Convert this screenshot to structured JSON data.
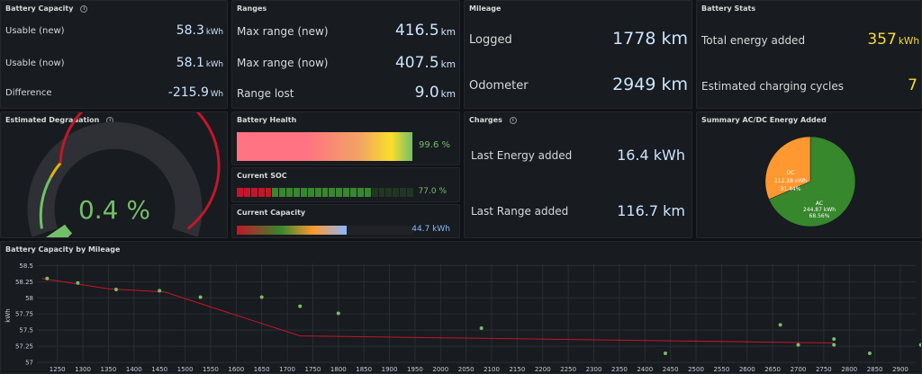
{
  "battery_capacity": {
    "title": "Battery Capacity",
    "rows": [
      {
        "label": "Usable (new)",
        "value": "58.3",
        "unit": "kWh"
      },
      {
        "label": "Usable (now)",
        "value": "58.1",
        "unit": "kWh"
      },
      {
        "label": "Difference",
        "value": "-215.9",
        "unit": "Wh"
      }
    ]
  },
  "ranges": {
    "title": "Ranges",
    "rows": [
      {
        "label": "Max range (new)",
        "value": "416.5",
        "unit": "km"
      },
      {
        "label": "Max range (now)",
        "value": "407.5",
        "unit": "km"
      },
      {
        "label": "Range lost",
        "value": "9.0",
        "unit": "km"
      }
    ]
  },
  "mileage": {
    "title": "Mileage",
    "rows": [
      {
        "label": "Logged",
        "value": "1778",
        "unit": "km"
      },
      {
        "label": "Odometer",
        "value": "2949",
        "unit": "km"
      }
    ]
  },
  "battery_stats": {
    "title": "Battery Stats",
    "rows": [
      {
        "label": "Total energy added",
        "value": "357",
        "unit": "kWh"
      },
      {
        "label": "Estimated charging cycles",
        "value": "7",
        "unit": ""
      }
    ]
  },
  "degradation": {
    "title": "Estimated Degradation",
    "value": "0.4 %",
    "level_fraction": 0.04
  },
  "battery_health": {
    "title": "Battery Health",
    "value": "99.6 %",
    "level_fraction": 0.996
  },
  "current_soc": {
    "title": "Current SOC",
    "value": "77.0 %",
    "level_fraction": 0.77
  },
  "current_capacity": {
    "title": "Current Capacity",
    "value": "44.7 kWh",
    "level_fraction": 0.62
  },
  "charges": {
    "title": "Charges",
    "rows": [
      {
        "label": "Last Energy added",
        "value": "16.4 kWh"
      },
      {
        "label": "Last Range added",
        "value": "116.7 km"
      }
    ]
  },
  "acdc": {
    "title": "Summary AC/DC Energy Added",
    "slices": [
      {
        "name": "AC",
        "amount": "244.87 kWh",
        "percent_text": "68.56%",
        "percent": 68.56,
        "color": "#37872d"
      },
      {
        "name": "DC",
        "amount": "112.28 kWh",
        "percent_text": "31.44%",
        "percent": 31.44,
        "color": "#ff9830"
      }
    ]
  },
  "chart_data": {
    "type": "scatter",
    "title": "Battery Capacity by Mileage",
    "xlabel": "",
    "ylabel": "kWh",
    "xlim": [
      1210,
      2930
    ],
    "ylim": [
      57.0,
      58.45
    ],
    "x_ticks": [
      "1250",
      "1300",
      "1350",
      "1400",
      "1450",
      "1500",
      "1550",
      "1600",
      "1650",
      "1700",
      "1750",
      "1800",
      "1850",
      "1900",
      "1950",
      "2000",
      "2050",
      "2100",
      "2150",
      "2200",
      "2250",
      "2300",
      "2350",
      "2400",
      "2450",
      "2500",
      "2550",
      "2600",
      "2650",
      "2700",
      "2750",
      "2800",
      "2850",
      "2900"
    ],
    "y_ticks": [
      "58.25",
      "58",
      "57.75",
      "57.5",
      "57.25",
      "57"
    ],
    "y_tick_values": [
      58.25,
      58.0,
      57.75,
      57.5,
      57.25,
      57.0
    ],
    "y_tick_58.5": "58.5",
    "series": [
      {
        "type": "scatter",
        "color": "#73bf69",
        "points": [
          [
            1230,
            58.3
          ],
          [
            1290,
            58.23
          ],
          [
            1365,
            58.13
          ],
          [
            1450,
            58.11
          ],
          [
            1530,
            58.01
          ],
          [
            1650,
            58.01
          ],
          [
            1725,
            57.87
          ],
          [
            1800,
            57.76
          ],
          [
            2080,
            57.53
          ],
          [
            2440,
            57.14
          ],
          [
            2665,
            57.58
          ],
          [
            2700,
            57.27
          ],
          [
            2770,
            57.36
          ],
          [
            2770,
            57.27
          ],
          [
            2840,
            57.14
          ],
          [
            2940,
            57.27
          ]
        ]
      },
      {
        "type": "line",
        "color": "#c4162a",
        "points": [
          [
            1220,
            58.3
          ],
          [
            1350,
            58.14
          ],
          [
            1460,
            58.09
          ],
          [
            1725,
            57.41
          ],
          [
            2770,
            57.3
          ]
        ]
      }
    ]
  }
}
